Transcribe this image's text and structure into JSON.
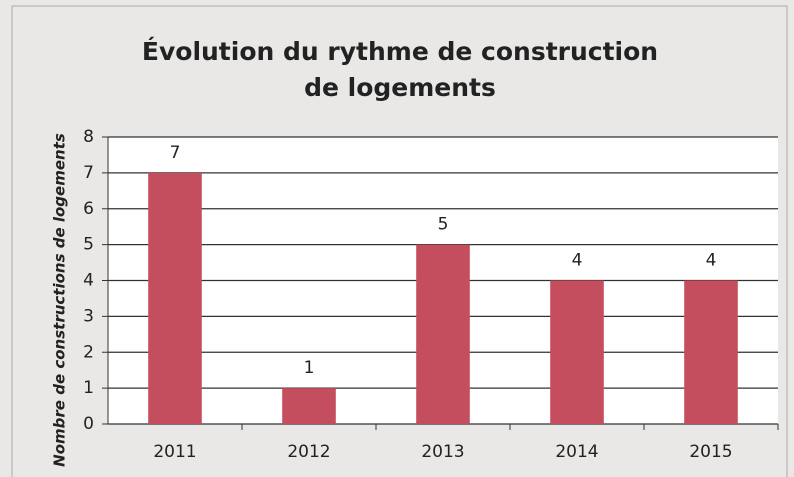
{
  "chart_data": {
    "type": "bar",
    "title": "Évolution du rythme de construction de logements",
    "y_label": "Nombre de constructions de logements",
    "categories": [
      "2011",
      "2012",
      "2013",
      "2014",
      "2015"
    ],
    "values": [
      7,
      1,
      5,
      4,
      4
    ],
    "color": "#c44d5e",
    "ylim": [
      0,
      8
    ],
    "yticks": [
      0,
      1,
      2,
      3,
      4,
      5,
      6,
      7,
      8
    ],
    "grid": true,
    "data_labels": true
  }
}
